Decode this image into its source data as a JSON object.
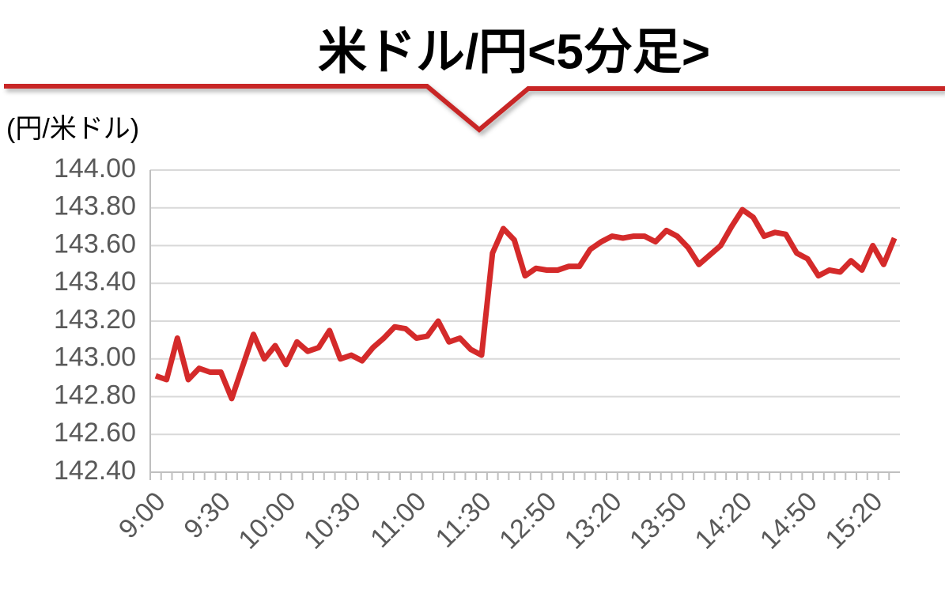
{
  "chart_data": {
    "type": "line",
    "title": "米ドル/円<5分足>",
    "y_label": "(円/米ドル)",
    "categories": [
      "9:00",
      null,
      null,
      null,
      null,
      null,
      "9:30",
      null,
      null,
      null,
      null,
      null,
      "10:00",
      null,
      null,
      null,
      null,
      null,
      "10:30",
      null,
      null,
      null,
      null,
      null,
      "11:00",
      null,
      null,
      null,
      null,
      null,
      "11:30",
      null,
      null,
      null,
      null,
      null,
      "12:50",
      null,
      null,
      null,
      null,
      null,
      "13:20",
      null,
      null,
      null,
      null,
      null,
      "13:50",
      null,
      null,
      null,
      null,
      null,
      "14:20",
      null,
      null,
      null,
      null,
      null,
      "14:50",
      null,
      null,
      null,
      null,
      null,
      "15:20",
      null,
      null
    ],
    "series": [
      {
        "color": "#d42a2a",
        "values": [
          142.91,
          142.89,
          143.11,
          142.89,
          142.95,
          142.93,
          142.93,
          142.79,
          142.96,
          143.13,
          143.0,
          143.07,
          142.97,
          143.09,
          143.04,
          143.06,
          143.15,
          143.0,
          143.02,
          142.99,
          143.06,
          143.11,
          143.17,
          143.16,
          143.11,
          143.12,
          143.2,
          143.09,
          143.11,
          143.05,
          143.02,
          143.56,
          143.69,
          143.63,
          143.44,
          143.48,
          143.47,
          143.47,
          143.49,
          143.49,
          143.58,
          143.62,
          143.65,
          143.64,
          143.65,
          143.65,
          143.62,
          143.68,
          143.65,
          143.59,
          143.5,
          143.55,
          143.6,
          143.7,
          143.79,
          143.75,
          143.65,
          143.67,
          143.66,
          143.56,
          143.53,
          143.44,
          143.47,
          143.46,
          143.52,
          143.47,
          143.6,
          143.5,
          143.64
        ]
      }
    ],
    "ylim": [
      142.4,
      144
    ],
    "yticks": [
      {
        "value": 142.4,
        "label": "142.40"
      },
      {
        "value": 142.6,
        "label": "142.60"
      },
      {
        "value": 142.8,
        "label": "142.80"
      },
      {
        "value": 143,
        "label": "143.00"
      },
      {
        "value": 143.2,
        "label": "143.20"
      },
      {
        "value": 143.4,
        "label": "143.40"
      },
      {
        "value": 143.6,
        "label": "143.60"
      },
      {
        "value": 143.8,
        "label": "143.80"
      },
      {
        "value": 144,
        "label": "144.00"
      }
    ],
    "grid": true
  }
}
